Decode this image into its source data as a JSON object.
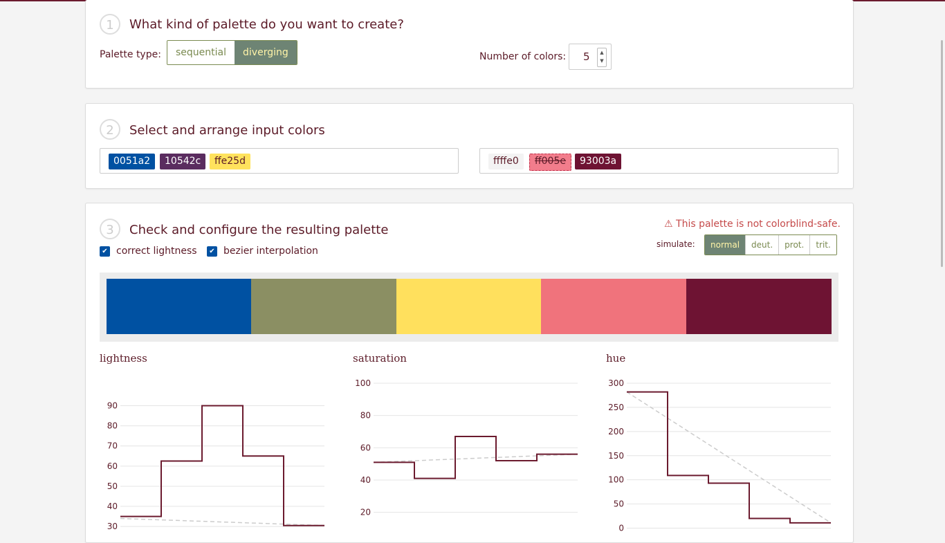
{
  "step1": {
    "num": "1",
    "title": "What kind of palette do you want to create?",
    "palette_type_label": "Palette type:",
    "palette_types": [
      "sequential",
      "diverging"
    ],
    "active_type": "diverging",
    "num_colors_label": "Number of colors:",
    "num_colors": "5"
  },
  "step2": {
    "num": "2",
    "title": "Select and arrange input colors",
    "left_colors": [
      {
        "hex": "0051a2",
        "bg": "#0051a2",
        "fg": "#ffffff"
      },
      {
        "hex": "10542c",
        "bg": "#5a2c5f",
        "fg": "#ffffff"
      },
      {
        "hex": "ffe25d",
        "bg": "#ffe25d",
        "fg": "#5b1a27"
      }
    ],
    "right_colors": [
      {
        "hex": "ffffe0",
        "bg": "#f3f3f3",
        "fg": "#5b1a27"
      },
      {
        "hex": "ff005e",
        "bg": "#f27d8c",
        "fg": "#5b1a27"
      },
      {
        "hex": "93003a",
        "bg": "#6e1333",
        "fg": "#ffffff"
      }
    ]
  },
  "step3": {
    "num": "3",
    "title": "Check and configure the resulting palette",
    "warning": "This palette is not colorblind-safe.",
    "warning_icon": "warning-triangle-icon",
    "simulate_label": "simulate:",
    "simulate_options": [
      "normal",
      "deut.",
      "prot.",
      "trit."
    ],
    "simulate_active": "normal",
    "checkbox_lightness": "correct lightness",
    "checkbox_bezier": "bezier interpolation",
    "palette": [
      "#0051a2",
      "#8b8f63",
      "#ffe05d",
      "#f0737c",
      "#6e1333"
    ]
  },
  "chart_data": [
    {
      "type": "line",
      "title": "lightness",
      "yticks": [
        30,
        40,
        50,
        60,
        70,
        80,
        90
      ],
      "ylim": [
        28,
        96
      ],
      "steps": [
        35,
        62.5,
        90,
        65,
        30.5
      ],
      "reference": [
        34,
        30.5
      ]
    },
    {
      "type": "line",
      "title": "saturation",
      "yticks": [
        20,
        40,
        60,
        80,
        100
      ],
      "ylim": [
        13,
        100
      ],
      "steps": [
        51,
        41,
        67,
        52,
        56
      ],
      "reference": [
        51,
        56
      ]
    },
    {
      "type": "line",
      "title": "hue",
      "yticks": [
        0,
        50,
        100,
        150,
        200,
        250,
        300
      ],
      "ylim": [
        -5,
        300
      ],
      "steps": [
        282,
        109,
        93,
        20,
        11
      ],
      "reference": [
        282,
        11
      ]
    }
  ],
  "colors": {
    "accent": "#6b1a2e",
    "line": "#6b1a2e",
    "reference": "#cccccc"
  }
}
